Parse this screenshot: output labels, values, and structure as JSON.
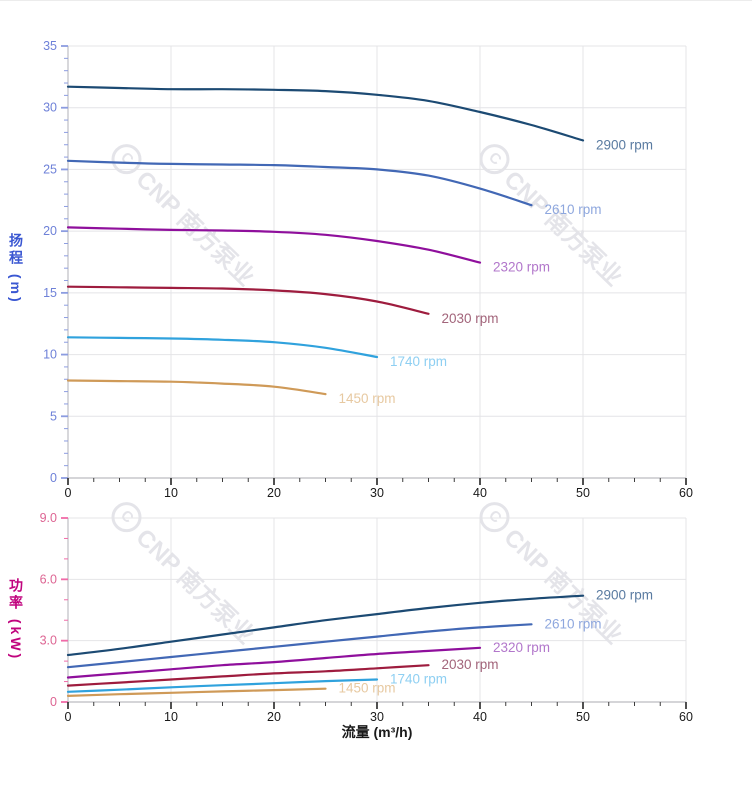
{
  "watermark": {
    "logo_letter": "C",
    "text": "CNP 南方泵业",
    "color": "#cfcfd8"
  },
  "colors": {
    "grid": "#e4e4e7",
    "axis_line": "#c7c7cc",
    "x_tick": "#3c3c3c",
    "x_tick_label": "#1a1a1a",
    "flow_title": "#1a1a1a",
    "head_title": "#3a57d2",
    "power_title": "#c0047e"
  },
  "chart_data": [
    {
      "type": "line",
      "title": "",
      "ylabel": "扬程 (m)",
      "xlabel": "流量 (m³/h)",
      "xlim": [
        0,
        60
      ],
      "ylim": [
        0,
        35
      ],
      "grid": true,
      "legend_position": "end-of-line-labels",
      "x_ticks": {
        "values": [
          0,
          10,
          20,
          30,
          40,
          50,
          60
        ],
        "labels": [
          "0",
          "10",
          "20",
          "30",
          "40",
          "50",
          "60"
        ],
        "minor_step": 2.5
      },
      "y_ticks": {
        "values": [
          0,
          5,
          10,
          15,
          20,
          25,
          30,
          35
        ],
        "labels": [
          "0",
          "5",
          "10",
          "15",
          "20",
          "25",
          "30",
          "35"
        ],
        "minor_step": 1,
        "tick_color": "#8c9ce0",
        "label_color": "#6e81d8"
      },
      "series": [
        {
          "name": "2900 rpm",
          "color": "#1c4a73",
          "label_color": "#5a7ba1",
          "points": [
            [
              0,
              31.7
            ],
            [
              5,
              31.6
            ],
            [
              10,
              31.5
            ],
            [
              15,
              31.5
            ],
            [
              20,
              31.45
            ],
            [
              25,
              31.35
            ],
            [
              30,
              31.05
            ],
            [
              35,
              30.55
            ],
            [
              40,
              29.65
            ],
            [
              45,
              28.6
            ],
            [
              50,
              27.35
            ]
          ]
        },
        {
          "name": "2610 rpm",
          "color": "#4268b5",
          "label_color": "#8ea7de",
          "points": [
            [
              0,
              25.7
            ],
            [
              5,
              25.55
            ],
            [
              10,
              25.45
            ],
            [
              15,
              25.4
            ],
            [
              20,
              25.35
            ],
            [
              25,
              25.2
            ],
            [
              30,
              25.0
            ],
            [
              35,
              24.5
            ],
            [
              40,
              23.45
            ],
            [
              45,
              22.1
            ]
          ]
        },
        {
          "name": "2320 rpm",
          "color": "#8f0f9c",
          "label_color": "#b277cb",
          "points": [
            [
              0,
              20.3
            ],
            [
              5,
              20.2
            ],
            [
              10,
              20.1
            ],
            [
              15,
              20.05
            ],
            [
              20,
              19.95
            ],
            [
              25,
              19.7
            ],
            [
              30,
              19.2
            ],
            [
              35,
              18.5
            ],
            [
              40,
              17.45
            ]
          ]
        },
        {
          "name": "2030 rpm",
          "color": "#9e1c3e",
          "label_color": "#a2647a",
          "points": [
            [
              0,
              15.5
            ],
            [
              5,
              15.45
            ],
            [
              10,
              15.4
            ],
            [
              15,
              15.35
            ],
            [
              20,
              15.2
            ],
            [
              25,
              14.9
            ],
            [
              30,
              14.3
            ],
            [
              35,
              13.3
            ]
          ]
        },
        {
          "name": "1740 rpm",
          "color": "#30a2dd",
          "label_color": "#8ecff2",
          "points": [
            [
              0,
              11.4
            ],
            [
              5,
              11.35
            ],
            [
              10,
              11.3
            ],
            [
              15,
              11.2
            ],
            [
              20,
              11.0
            ],
            [
              25,
              10.55
            ],
            [
              30,
              9.8
            ]
          ]
        },
        {
          "name": "1450 rpm",
          "color": "#cf9a58",
          "label_color": "#e7c9a1",
          "points": [
            [
              0,
              7.9
            ],
            [
              5,
              7.85
            ],
            [
              10,
              7.8
            ],
            [
              15,
              7.65
            ],
            [
              20,
              7.4
            ],
            [
              25,
              6.8
            ]
          ]
        }
      ]
    },
    {
      "type": "line",
      "title": "",
      "ylabel": "功率 (kW)",
      "xlabel": "流量 (m³/h)",
      "xlim": [
        0,
        60
      ],
      "ylim": [
        0,
        9
      ],
      "grid": true,
      "legend_position": "end-of-line-labels",
      "x_ticks": {
        "values": [
          0,
          10,
          20,
          30,
          40,
          50,
          60
        ],
        "labels": [
          "0",
          "10",
          "20",
          "30",
          "40",
          "50",
          "60"
        ],
        "minor_step": 2.5
      },
      "y_ticks": {
        "values": [
          0,
          3,
          6,
          9
        ],
        "labels": [
          "0",
          "3.0",
          "6.0",
          "9.0"
        ],
        "minor_step": 1,
        "tick_color": "#f06ba8",
        "label_color": "#dd6593"
      },
      "series": [
        {
          "name": "2900 rpm",
          "color": "#1c4a73",
          "label_color": "#5a7ba1",
          "points": [
            [
              0,
              2.3
            ],
            [
              5,
              2.6
            ],
            [
              10,
              2.95
            ],
            [
              15,
              3.3
            ],
            [
              20,
              3.65
            ],
            [
              25,
              4.0
            ],
            [
              30,
              4.3
            ],
            [
              35,
              4.6
            ],
            [
              40,
              4.85
            ],
            [
              45,
              5.05
            ],
            [
              50,
              5.2
            ]
          ]
        },
        {
          "name": "2610 rpm",
          "color": "#4268b5",
          "label_color": "#8ea7de",
          "points": [
            [
              0,
              1.7
            ],
            [
              5,
              1.95
            ],
            [
              10,
              2.2
            ],
            [
              15,
              2.45
            ],
            [
              20,
              2.7
            ],
            [
              25,
              2.95
            ],
            [
              30,
              3.2
            ],
            [
              35,
              3.45
            ],
            [
              40,
              3.65
            ],
            [
              45,
              3.8
            ]
          ]
        },
        {
          "name": "2320 rpm",
          "color": "#8f0f9c",
          "label_color": "#b277cb",
          "points": [
            [
              0,
              1.2
            ],
            [
              5,
              1.4
            ],
            [
              10,
              1.6
            ],
            [
              15,
              1.8
            ],
            [
              20,
              1.95
            ],
            [
              25,
              2.15
            ],
            [
              30,
              2.35
            ],
            [
              35,
              2.5
            ],
            [
              40,
              2.65
            ]
          ]
        },
        {
          "name": "2030 rpm",
          "color": "#9e1c3e",
          "label_color": "#a2647a",
          "points": [
            [
              0,
              0.8
            ],
            [
              5,
              0.95
            ],
            [
              10,
              1.1
            ],
            [
              15,
              1.25
            ],
            [
              20,
              1.4
            ],
            [
              25,
              1.5
            ],
            [
              30,
              1.65
            ],
            [
              35,
              1.8
            ]
          ]
        },
        {
          "name": "1740 rpm",
          "color": "#30a2dd",
          "label_color": "#8ecff2",
          "points": [
            [
              0,
              0.5
            ],
            [
              5,
              0.6
            ],
            [
              10,
              0.72
            ],
            [
              15,
              0.82
            ],
            [
              20,
              0.92
            ],
            [
              25,
              1.02
            ],
            [
              30,
              1.1
            ]
          ]
        },
        {
          "name": "1450 rpm",
          "color": "#cf9a58",
          "label_color": "#e7c9a1",
          "points": [
            [
              0,
              0.3
            ],
            [
              5,
              0.38
            ],
            [
              10,
              0.45
            ],
            [
              15,
              0.52
            ],
            [
              20,
              0.58
            ],
            [
              25,
              0.65
            ]
          ]
        }
      ]
    }
  ]
}
